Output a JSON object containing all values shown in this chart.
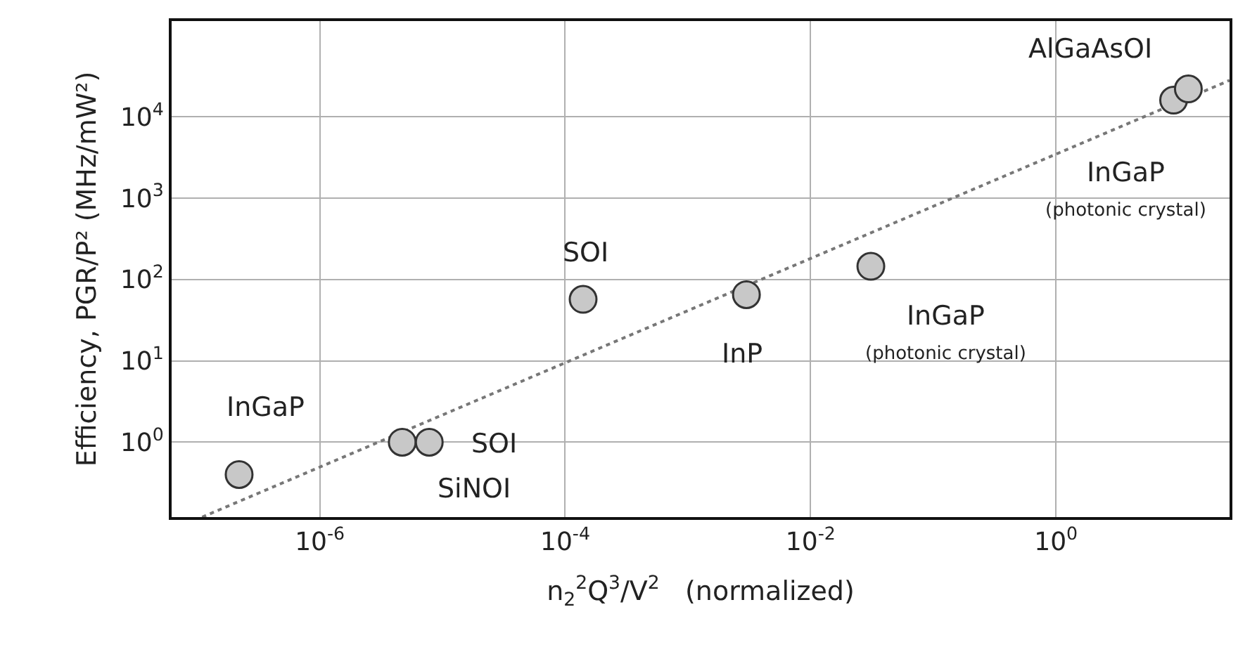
{
  "chart_data": {
    "type": "scatter",
    "log": "xy",
    "grid": true,
    "xlabel": "n$_{2}$$^{2}$Q$^{3}$/V$^{2}$   (normalized)",
    "ylabel": "Efficiency, PGR/P² (MHz/mW²)",
    "xlim": [
      6.2e-08,
      26
    ],
    "ylim": [
      0.12,
      150000
    ],
    "xticks": [
      {
        "value": 1e-06,
        "label": "10$^{-6}$"
      },
      {
        "value": 0.0001,
        "label": "10$^{-4}$"
      },
      {
        "value": 0.01,
        "label": "10$^{-2}$"
      },
      {
        "value": 1,
        "label": "10$^{0}$"
      }
    ],
    "yticks": [
      {
        "value": 1,
        "label": "10$^{0}$"
      },
      {
        "value": 10,
        "label": "10$^{1}$"
      },
      {
        "value": 100,
        "label": "10$^{2}$"
      },
      {
        "value": 1000,
        "label": "10$^{3}$"
      },
      {
        "value": 10000,
        "label": "10$^{4}$"
      }
    ],
    "series": [
      {
        "type": "line",
        "color": "#777777",
        "line_style": "dotted",
        "x": [
          1.1e-07,
          26
        ],
        "values": [
          0.12,
          28000
        ]
      },
      {
        "marker": "circle",
        "color": "#c8c8c8",
        "x": [
          2.2e-07,
          4.7e-06,
          7.8e-06,
          0.00014,
          0.003,
          0.031,
          9.1,
          12
        ],
        "values": [
          0.4,
          1,
          1,
          57,
          65,
          145,
          16000,
          22000
        ]
      }
    ],
    "annotations": [
      {
        "text": "InGaP",
        "x": 2.2e-07,
        "y": 0.4
      },
      {
        "text": "SOI",
        "x": 7.8e-06,
        "y": 1
      },
      {
        "text": "SiNOI",
        "x": 4.7e-06,
        "y": 1
      },
      {
        "text": "SOI",
        "x": 0.00014,
        "y": 57
      },
      {
        "text": "InP",
        "x": 0.003,
        "y": 65
      },
      {
        "text": "InGaP\n(photonic crystal)",
        "x": 0.031,
        "y": 145
      },
      {
        "text": "AlGaAsOI",
        "x": 12,
        "y": 22000
      },
      {
        "text": "InGaP\n(photonic crystal)",
        "x": 9.1,
        "y": 16000
      }
    ]
  }
}
